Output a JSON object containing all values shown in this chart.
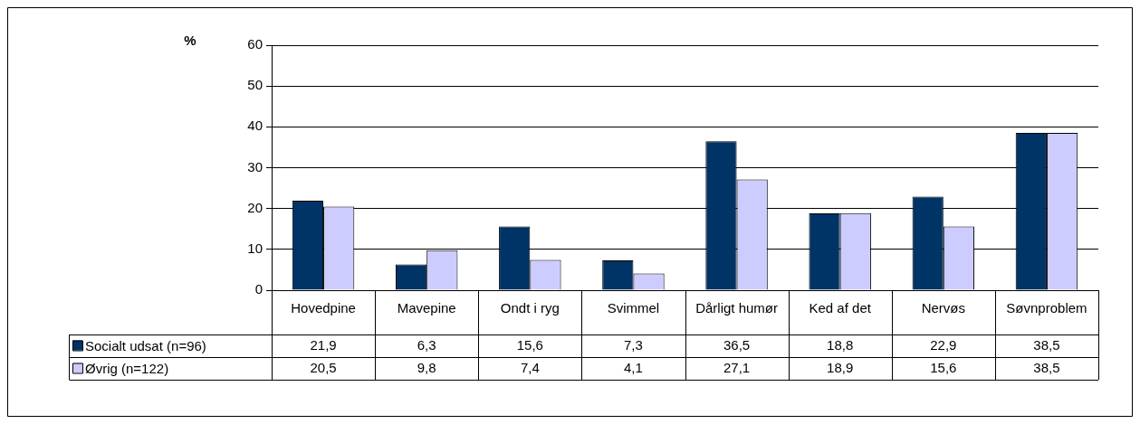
{
  "chart_data": {
    "type": "bar",
    "ylabel": "%",
    "categories": [
      "Hovedpine",
      "Mavepine",
      "Ondt i ryg",
      "Svimmel",
      "Dårligt humør",
      "Ked af det",
      "Nervøs",
      "Søvnproblem"
    ],
    "series": [
      {
        "name": "Socialt udsat (n=96)",
        "color": "#003366",
        "values": [
          21.9,
          6.3,
          15.6,
          7.3,
          36.5,
          18.8,
          22.9,
          38.5
        ],
        "value_labels": [
          "21,9",
          "6,3",
          "15,6",
          "7,3",
          "36,5",
          "18,8",
          "22,9",
          "38,5"
        ]
      },
      {
        "name": "Øvrig (n=122)",
        "color": "#ccccff",
        "values": [
          20.5,
          9.8,
          7.4,
          4.1,
          27.1,
          18.9,
          15.6,
          38.5
        ],
        "value_labels": [
          "20,5",
          "9,8",
          "7,4",
          "4,1",
          "27,1",
          "18,9",
          "15,6",
          "38,5"
        ]
      }
    ],
    "ylim": [
      0,
      60
    ],
    "yticks": [
      0,
      10,
      20,
      30,
      40,
      50,
      60
    ],
    "grid": "y",
    "legend": "bottom"
  }
}
